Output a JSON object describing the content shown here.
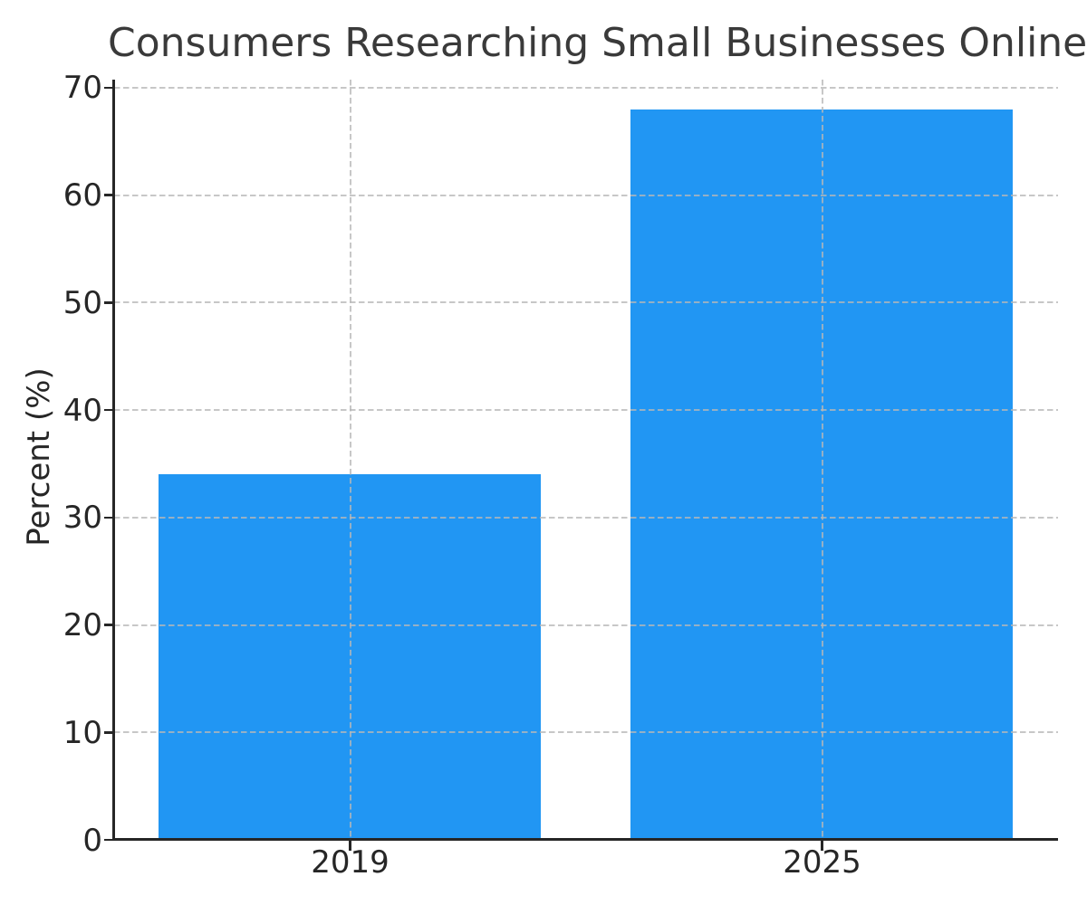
{
  "chart_data": {
    "type": "bar",
    "title": "Consumers Researching Small Businesses Online",
    "xlabel": "",
    "ylabel": "Percent (%)",
    "categories": [
      "2019",
      "2025"
    ],
    "values": [
      34,
      68
    ],
    "yticks": [
      0,
      10,
      20,
      30,
      40,
      50,
      60,
      70
    ],
    "ylim": [
      0,
      70.75
    ],
    "grid": true,
    "legend": false,
    "bar_color": "#2196f3",
    "grid_color": "#bebebe",
    "axis_color": "#262626",
    "title_color": "#3a3a3a",
    "tick_color": "#262626"
  }
}
